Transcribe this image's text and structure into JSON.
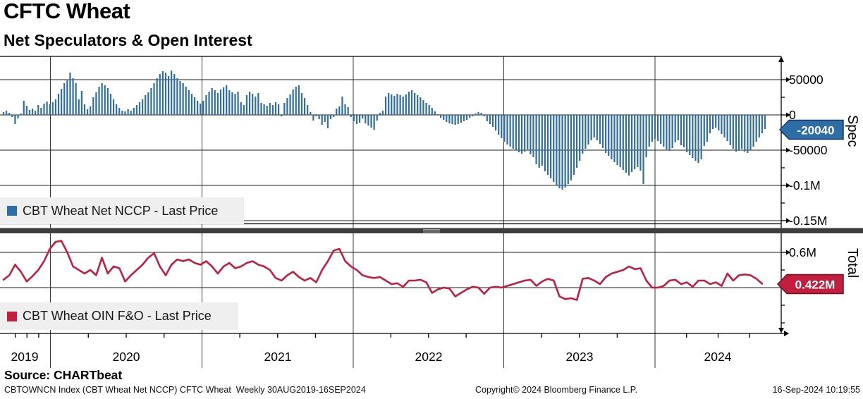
{
  "header": {
    "title": "CFTC Wheat",
    "subtitle": "Net Speculators & Open Interest"
  },
  "colors": {
    "bar": "#2e6da6",
    "line": "#c11f3d",
    "badge_spec_bg": "#2e6da6",
    "badge_spec_border": "#123a66",
    "badge_total_bg": "#c11f3d",
    "badge_total_border": "#6e1020",
    "legend_bg": "#efefef",
    "grid_vertical": "#3a3a3a",
    "grid_horizontal": "#1c1c1c",
    "frame": "#000000",
    "separator_band": "#3d3d3d",
    "separator_grip": "#9e9e9e"
  },
  "top_panel": {
    "legend_label": "CBT Wheat Net NCCP - Last Price",
    "axis_title": "Spec",
    "badge_value": "-20040"
  },
  "bottom_panel": {
    "legend_label": "CBT Wheat OIN F&O - Last Price",
    "axis_title": "Total",
    "badge_value": "0.422M"
  },
  "x_axis": {
    "year_labels": [
      "2019",
      "2020",
      "2021",
      "2022",
      "2023",
      "2024"
    ]
  },
  "footer": {
    "source": "Source: CHARTbeat",
    "left": "CBTOWNCN Index (CBT Wheat Net NCCP) CFTC Wheat  Weekly 30AUG2019-16SEP2024",
    "center": "Copyright© 2024 Bloomberg Finance L.P.",
    "right": "16-Sep-2024 10:19:55"
  },
  "chart_data": [
    {
      "type": "bar",
      "title": "CBT Wheat Net NCCP - Last Price",
      "panel": "Spec",
      "frequency": "Weekly",
      "x_range": "30AUG2019 - 16SEP2024",
      "ylim": [
        -165000,
        81000
      ],
      "grid": true,
      "legend_position": "bottom-left",
      "last_price": -20040,
      "yticks": [
        {
          "label": "50000",
          "value": 50
        },
        {
          "label": "0",
          "value": 0
        },
        {
          "label": "-50000",
          "value": -50
        },
        {
          "label": "-0.1M",
          "value": -100
        },
        {
          "label": "-0.15M",
          "value": -150
        }
      ],
      "minor_ytick_values": [
        25,
        -25,
        -75,
        -125
      ],
      "values_thousands": [
        4,
        6,
        3,
        -3,
        -13,
        -5,
        2,
        20,
        13,
        7,
        9,
        6,
        14,
        10,
        16,
        19,
        15,
        18,
        22,
        30,
        37,
        45,
        49,
        60,
        52,
        45,
        22,
        34,
        15,
        8,
        12,
        25,
        32,
        40,
        45,
        42,
        38,
        30,
        22,
        15,
        10,
        6,
        5,
        8,
        6,
        10,
        14,
        18,
        22,
        28,
        32,
        38,
        45,
        52,
        58,
        62,
        60,
        55,
        63,
        58,
        52,
        48,
        45,
        40,
        35,
        30,
        25,
        20,
        16,
        20,
        28,
        33,
        38,
        35,
        31,
        36,
        39,
        42,
        35,
        32,
        30,
        33,
        18,
        14,
        28,
        33,
        30,
        26,
        31,
        17,
        15,
        13,
        17,
        14,
        18,
        15,
        -2,
        17,
        24,
        29,
        36,
        40,
        42,
        31,
        24,
        14,
        4,
        -8,
        -2,
        -6,
        -14,
        -10,
        -19,
        -6,
        -3,
        9,
        12,
        26,
        15,
        11,
        -3,
        -9,
        -13,
        -11,
        -5,
        -12,
        -15,
        -18,
        -21,
        -8,
        3,
        6,
        26,
        31,
        29,
        27,
        30,
        28,
        26,
        29,
        33,
        35,
        31,
        28,
        25,
        21,
        17,
        14,
        10,
        5,
        1,
        -4,
        -7,
        -10,
        -12,
        -13,
        -14,
        -13,
        -11,
        -9,
        -7,
        -4,
        -2,
        2,
        4,
        3,
        -2,
        -9,
        -13,
        -17,
        -22,
        -28,
        -33,
        -38,
        -42,
        -45,
        -48,
        -50,
        -53,
        -55,
        -52,
        -49,
        -56,
        -60,
        -70,
        -75,
        -72,
        -80,
        -85,
        -90,
        -95,
        -100,
        -104,
        -106,
        -103,
        -98,
        -93,
        -85,
        -75,
        -65,
        -55,
        -48,
        -42,
        -36,
        -32,
        -36,
        -41,
        -47,
        -54,
        -58,
        -63,
        -67,
        -71,
        -74,
        -78,
        -82,
        -86,
        -81,
        -77,
        -74,
        -79,
        -98,
        -60,
        -45,
        -38,
        -34,
        -37,
        -41,
        -45,
        -49,
        -51,
        -47,
        -39,
        -36,
        -43,
        -46,
        -53,
        -57,
        -61,
        -65,
        -68,
        -63,
        -44,
        -38,
        -26,
        -20,
        -18,
        -22,
        -27,
        -32,
        -37,
        -43,
        -48,
        -52,
        -50,
        -48,
        -52,
        -54,
        -50,
        -45,
        -38,
        -32,
        -26,
        -20.04
      ]
    },
    {
      "type": "line",
      "title": "CBT Wheat OIN F&O - Last Price",
      "panel": "Total",
      "frequency": "Weekly",
      "x_range": "30AUG2019 - 16SEP2024",
      "ylim": [
        0.145,
        0.7
      ],
      "grid": true,
      "legend_position": "bottom-left",
      "last_price": 0.422,
      "yticks": [
        {
          "label": "0.6M",
          "value": 0.6
        },
        {
          "label": "0.4M",
          "value": 0.4,
          "hidden_behind_badge": true
        }
      ],
      "minor_ytick_values": [
        0.5,
        0.3,
        0.2
      ],
      "values_millions": [
        0.445,
        0.47,
        0.53,
        0.49,
        0.435,
        0.465,
        0.5,
        0.55,
        0.62,
        0.66,
        0.665,
        0.6,
        0.52,
        0.5,
        0.48,
        0.5,
        0.47,
        0.57,
        0.48,
        0.52,
        0.51,
        0.435,
        0.47,
        0.5,
        0.53,
        0.57,
        0.595,
        0.52,
        0.47,
        0.53,
        0.56,
        0.55,
        0.56,
        0.54,
        0.53,
        0.55,
        0.52,
        0.48,
        0.52,
        0.54,
        0.51,
        0.52,
        0.54,
        0.55,
        0.53,
        0.52,
        0.5,
        0.455,
        0.44,
        0.47,
        0.49,
        0.46,
        0.44,
        0.455,
        0.43,
        0.5,
        0.55,
        0.61,
        0.62,
        0.55,
        0.52,
        0.5,
        0.47,
        0.46,
        0.455,
        0.46,
        0.44,
        0.42,
        0.425,
        0.405,
        0.44,
        0.44,
        0.445,
        0.43,
        0.37,
        0.39,
        0.4,
        0.395,
        0.35,
        0.37,
        0.39,
        0.405,
        0.4,
        0.365,
        0.4,
        0.405,
        0.4,
        0.41,
        0.42,
        0.43,
        0.44,
        0.445,
        0.41,
        0.435,
        0.45,
        0.44,
        0.35,
        0.335,
        0.34,
        0.33,
        0.45,
        0.455,
        0.44,
        0.42,
        0.46,
        0.48,
        0.49,
        0.5,
        0.52,
        0.505,
        0.51,
        0.44,
        0.4,
        0.4,
        0.41,
        0.44,
        0.445,
        0.42,
        0.43,
        0.405,
        0.44,
        0.44,
        0.42,
        0.43,
        0.41,
        0.48,
        0.44,
        0.47,
        0.475,
        0.47,
        0.45,
        0.422
      ]
    }
  ]
}
